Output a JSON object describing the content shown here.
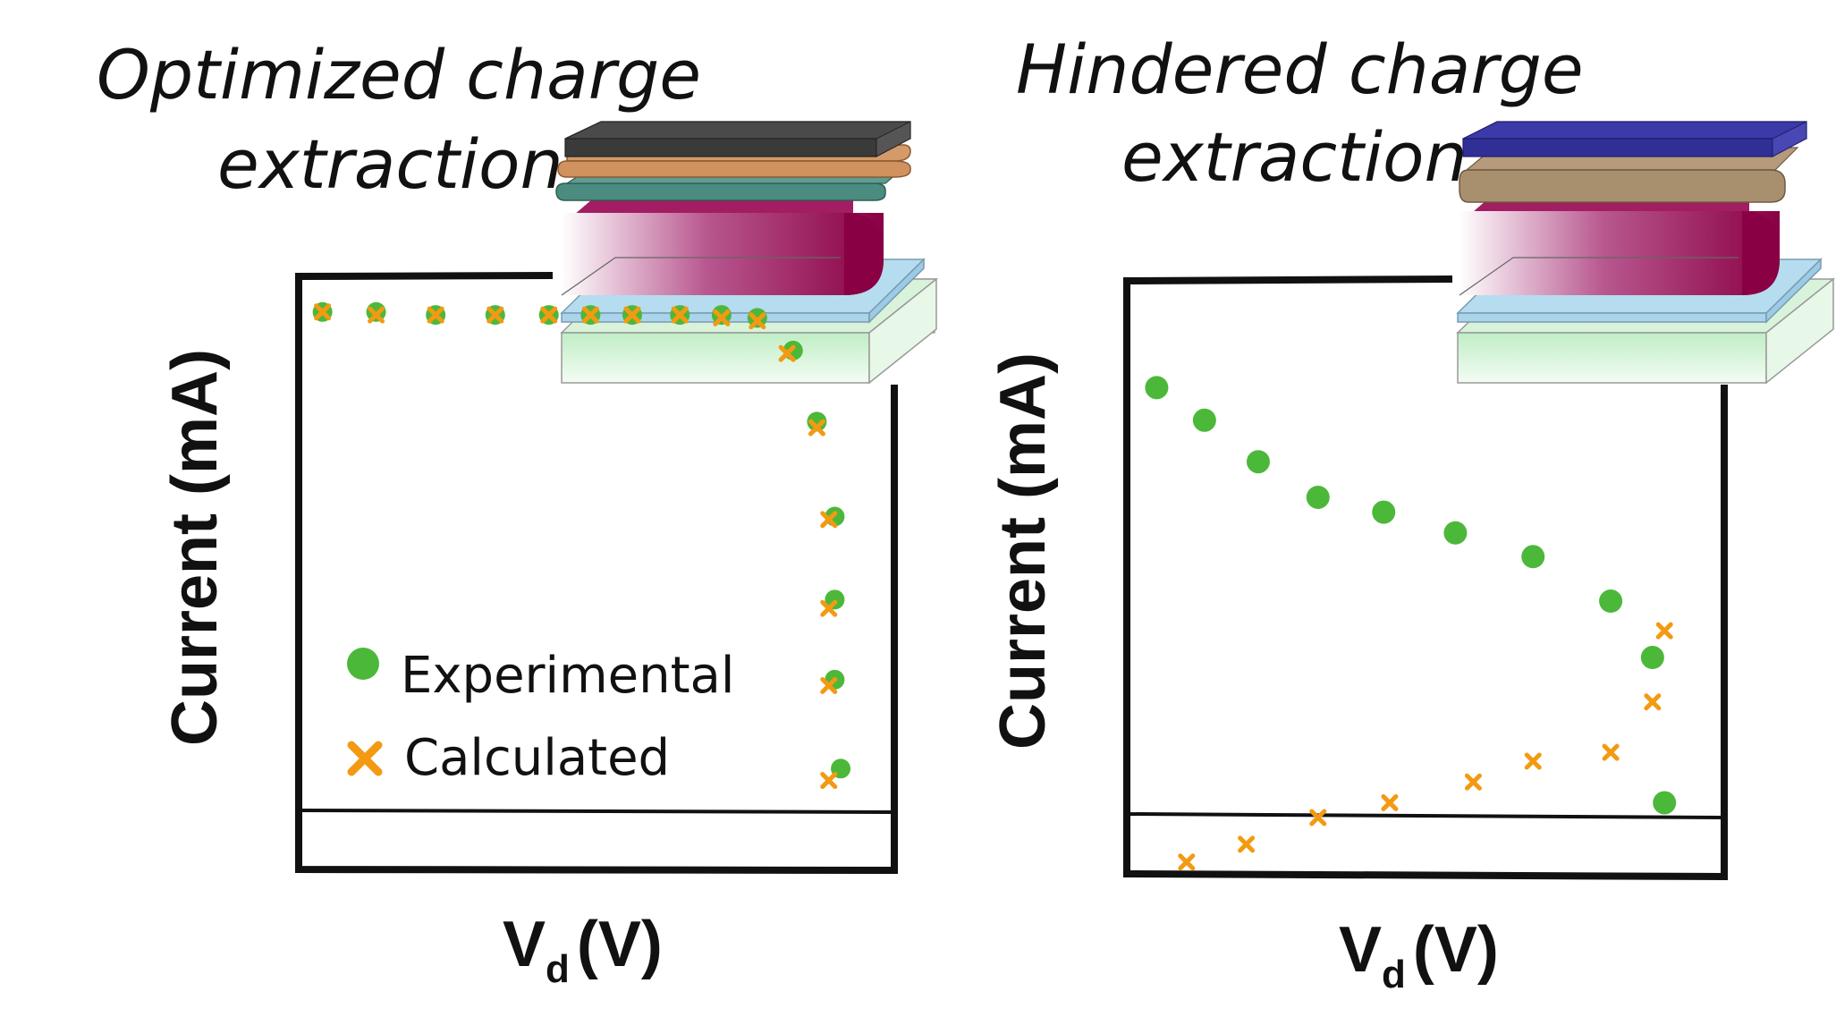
{
  "colors": {
    "experimental": "#4CB83A",
    "calculated": "#F39A12",
    "axis": "#111111"
  },
  "panels": [
    {
      "title_line1": "Optimized charge",
      "title_line2": "extraction",
      "ylabel": "Current (mA)",
      "xlabel_main": "V",
      "xlabel_sub": "d",
      "xlabel_unit": "(V)",
      "device_icon": "layered-device-stack-icon"
    },
    {
      "title_line1": "Hindered charge",
      "title_line2": "extraction",
      "ylabel": "Current (mA)",
      "xlabel_main": "V",
      "xlabel_sub": "d",
      "xlabel_unit": "(V)",
      "device_icon": "layered-device-stack-icon"
    }
  ],
  "legend": {
    "experimental_label": "Experimental",
    "calculated_label": "Calculated"
  },
  "chart_data": [
    {
      "type": "scatter",
      "xlabel": "Vd (V)",
      "ylabel": "Current (mA)",
      "xlim": [
        0,
        1
      ],
      "ylim": [
        0,
        1
      ],
      "grid": false,
      "legend_position": "bottom-left",
      "zero_line_y": 0.1,
      "series": [
        {
          "name": "Experimental",
          "marker": "circle",
          "points": [
            [
              0.04,
              0.94
            ],
            [
              0.13,
              0.94
            ],
            [
              0.23,
              0.935
            ],
            [
              0.33,
              0.935
            ],
            [
              0.42,
              0.935
            ],
            [
              0.49,
              0.935
            ],
            [
              0.56,
              0.935
            ],
            [
              0.64,
              0.935
            ],
            [
              0.71,
              0.935
            ],
            [
              0.77,
              0.93
            ],
            [
              0.83,
              0.875
            ],
            [
              0.87,
              0.755
            ],
            [
              0.9,
              0.595
            ],
            [
              0.9,
              0.455
            ],
            [
              0.9,
              0.32
            ],
            [
              0.91,
              0.17
            ]
          ]
        },
        {
          "name": "Calculated",
          "marker": "x",
          "points": [
            [
              0.04,
              0.94
            ],
            [
              0.13,
              0.935
            ],
            [
              0.23,
              0.935
            ],
            [
              0.33,
              0.935
            ],
            [
              0.42,
              0.935
            ],
            [
              0.49,
              0.935
            ],
            [
              0.56,
              0.935
            ],
            [
              0.64,
              0.935
            ],
            [
              0.71,
              0.93
            ],
            [
              0.77,
              0.925
            ],
            [
              0.82,
              0.87
            ],
            [
              0.87,
              0.745
            ],
            [
              0.89,
              0.59
            ],
            [
              0.89,
              0.44
            ],
            [
              0.89,
              0.31
            ],
            [
              0.89,
              0.15
            ]
          ]
        }
      ]
    },
    {
      "type": "scatter",
      "xlabel": "Vd (V)",
      "ylabel": "Current (mA)",
      "xlim": [
        0,
        1
      ],
      "ylim": [
        0,
        1
      ],
      "grid": false,
      "zero_line_y": 0.1,
      "series": [
        {
          "name": "Experimental",
          "marker": "circle",
          "points": [
            [
              0.05,
              0.82
            ],
            [
              0.13,
              0.765
            ],
            [
              0.22,
              0.695
            ],
            [
              0.32,
              0.635
            ],
            [
              0.43,
              0.61
            ],
            [
              0.55,
              0.575
            ],
            [
              0.68,
              0.535
            ],
            [
              0.81,
              0.46
            ],
            [
              0.88,
              0.365
            ],
            [
              0.9,
              0.12
            ]
          ]
        },
        {
          "name": "Calculated",
          "marker": "x",
          "points": [
            [
              0.1,
              0.02
            ],
            [
              0.2,
              0.05
            ],
            [
              0.32,
              0.095
            ],
            [
              0.44,
              0.12
            ],
            [
              0.58,
              0.155
            ],
            [
              0.68,
              0.19
            ],
            [
              0.81,
              0.205
            ],
            [
              0.88,
              0.29
            ],
            [
              0.9,
              0.41
            ]
          ]
        }
      ]
    }
  ]
}
